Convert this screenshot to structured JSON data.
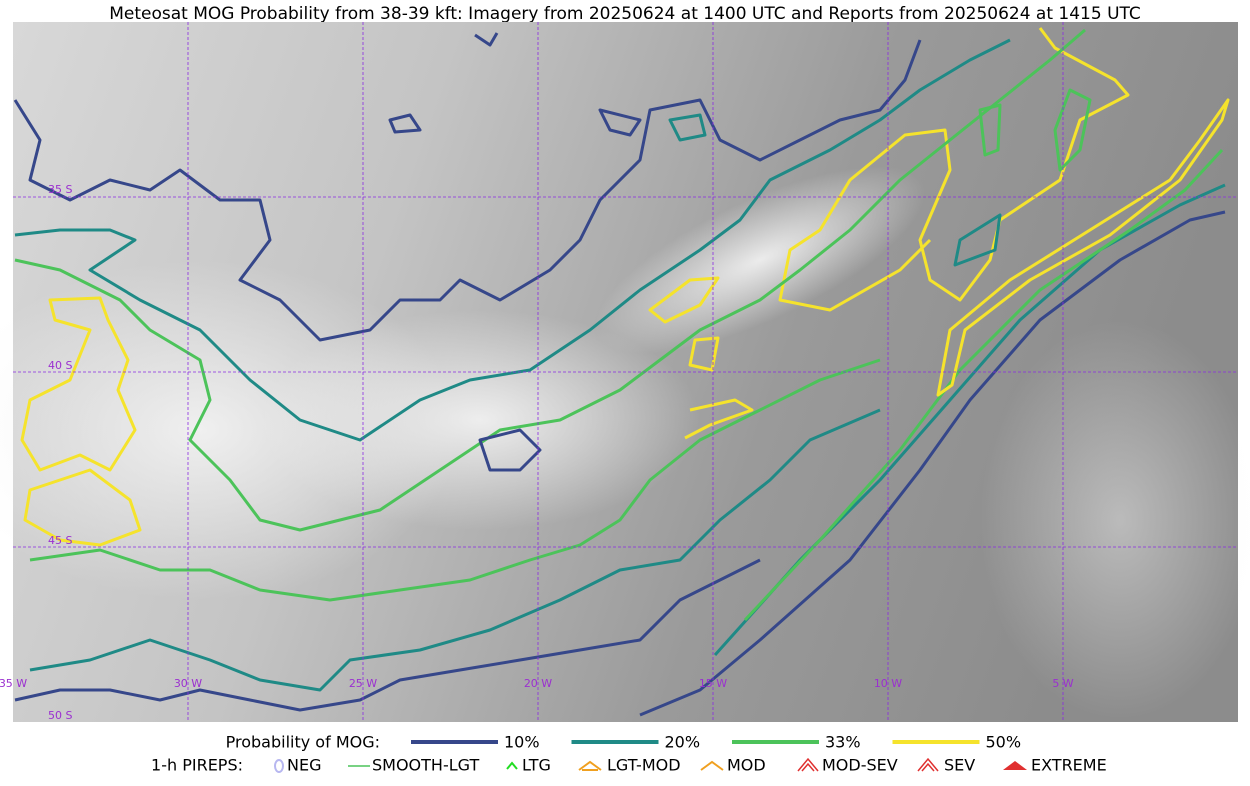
{
  "title": "Meteosat MOG Probability from 38-39 kft: Imagery from 20250624 at 1400 UTC and Reports from 20250624 at 1415 UTC",
  "map": {
    "lon_labels": [
      "35 W",
      "30 W",
      "25 W",
      "20 W",
      "15 W",
      "10 W",
      "5 W"
    ],
    "lat_labels": [
      "35 S",
      "40 S",
      "45 S",
      "50 S"
    ]
  },
  "legend": {
    "title": "Probability of MOG:",
    "entries": [
      {
        "label": "10%",
        "color": "#36478a"
      },
      {
        "label": "20%",
        "color": "#1f8a86"
      },
      {
        "label": "33%",
        "color": "#4cc35a"
      },
      {
        "label": "50%",
        "color": "#f5e32c"
      }
    ]
  },
  "pireps": {
    "title": "1-h PIREPS:",
    "entries": [
      "NEG",
      "SMOOTH-LGT",
      "LTG",
      "LGT-MOD",
      "MOD",
      "MOD-SEV",
      "SEV",
      "EXTREME"
    ]
  }
}
